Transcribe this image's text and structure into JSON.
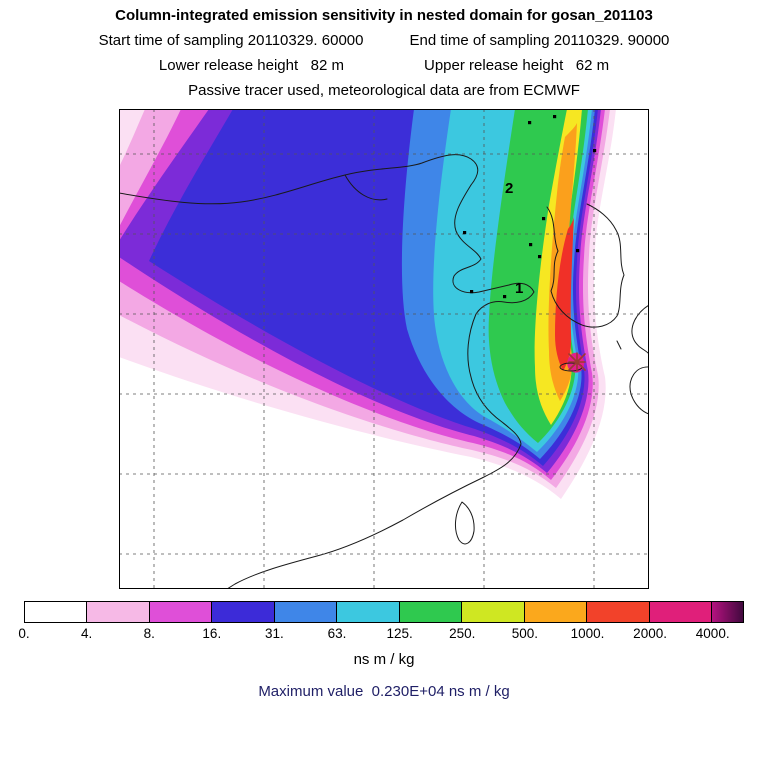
{
  "header": {
    "title": "Column-integrated emission sensitivity in nested domain for gosan_201103",
    "start_time": "Start time of sampling 20110329. 60000",
    "end_time": "End time of sampling 20110329. 90000",
    "lower_release": "Lower release height   82 m",
    "upper_release": "Upper release height   62 m",
    "tracer_line": "Passive tracer used, meteorological data are from ECMWF"
  },
  "map": {
    "marker1": "1",
    "marker2": "2"
  },
  "palette": {
    "band_pale": "#fbe0f3",
    "band_pink": "#f3a8e4",
    "band_magenta": "#df4fd8",
    "band_violet": "#7c2bd8",
    "band_dark_blue": "#3c2ed8",
    "band_blue": "#3f86e8",
    "band_cyan": "#3cc8e0",
    "band_green": "#2fc94f",
    "band_yellow": "#f6e722",
    "band_orange": "#fba01c",
    "band_red": "#f03028",
    "band_core": "#e01f8b",
    "coast": "#1a1a1a",
    "grid": "#555555",
    "star": "#9c3a30"
  },
  "colorbar": {
    "ticks": [
      "0.",
      "4.",
      "8.",
      "16.",
      "31.",
      "63.",
      "125.",
      "250.",
      "500.",
      "1000.",
      "2000.",
      "4000."
    ],
    "segments": [
      "#ffffff",
      "#f6b9e6",
      "#df4fd8",
      "#3c2bd8",
      "#3f86e8",
      "#3cc8e0",
      "#2fc94f",
      "#cfe722",
      "#fba81c",
      "#f2422a",
      "#e01f7a",
      "#b5127f"
    ],
    "over_color": "#41093e",
    "units": "ns m / kg"
  },
  "footer": {
    "max_value": "Maximum value  0.230E+04 ns m / kg"
  },
  "chart_data": {
    "type": "heatmap",
    "title": "Column-integrated emission sensitivity in nested domain for gosan_201103",
    "subtitle": [
      "Start time of sampling 20110329. 60000",
      "End time of sampling 20110329. 90000",
      "Lower release height 82 m",
      "Upper release height 62 m",
      "Passive tracer used, meteorological data are from ECMWF"
    ],
    "colorbar_levels": [
      0,
      4,
      8,
      16,
      31,
      63,
      125,
      250,
      500,
      1000,
      2000,
      4000
    ],
    "colorbar_tick_labels": [
      "0.",
      "4.",
      "8.",
      "16.",
      "31.",
      "63.",
      "125.",
      "250.",
      "500.",
      "1000.",
      "2000.",
      "4000."
    ],
    "colorbar_colors": [
      "#ffffff",
      "#f6b9e6",
      "#df4fd8",
      "#3c2bd8",
      "#3f86e8",
      "#3cc8e0",
      "#2fc94f",
      "#cfe722",
      "#fba81c",
      "#f2422a",
      "#e01f7a",
      "#b5127f"
    ],
    "over_range_color": "#41093e",
    "units": "ns m / kg",
    "maximum_value_label": "Maximum value  0.230E+04 ns m / kg",
    "maximum_value": 2300,
    "receptor_site": "gosan",
    "receptor_marker": "star near Jeju Island at plume origin",
    "numbered_site_markers": [
      "1",
      "2"
    ],
    "legend_position": "bottom",
    "grid": "dashed lat/lon graticule",
    "plume_description": "Emission sensitivity plume extends northwest from the Gosan receptor (star) across the Yellow Sea, Bohai, eastern China and Mongolia; highest sensitivity (>500 ns m/kg, yellow-orange-red) hugs the Chinese coast from Bohai south to the receptor, with a sharp compressed gradient along the eastern edge near Korea and a southward lobe over the East China Sea."
  }
}
